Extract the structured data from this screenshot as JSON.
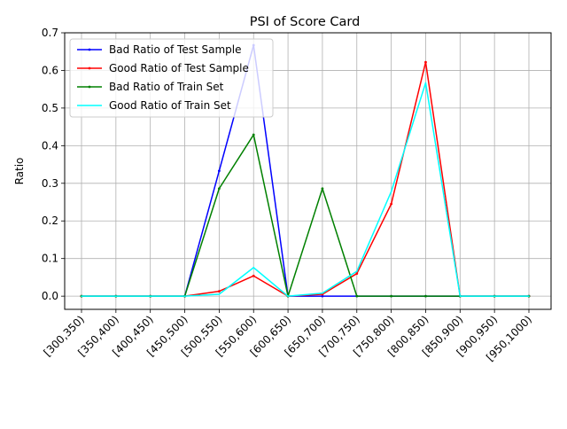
{
  "chart_data": {
    "type": "line",
    "title": "PSI of Score Card",
    "xlabel": "",
    "ylabel": "Ratio",
    "ylim": [
      -0.035,
      0.7
    ],
    "yticks": [
      0.0,
      0.1,
      0.2,
      0.3,
      0.4,
      0.5,
      0.6,
      0.7
    ],
    "ytick_labels": [
      "0.0",
      "0.1",
      "0.2",
      "0.3",
      "0.4",
      "0.5",
      "0.6",
      "0.7"
    ],
    "grid": true,
    "legend_position": "upper-left",
    "categories": [
      "[300,350)",
      "[350,400)",
      "[400,450)",
      "[450,500)",
      "[500,550)",
      "[550,600)",
      "[600,650)",
      "[650,700)",
      "[700,750)",
      "[750,800)",
      "[800,850)",
      "[850,900)",
      "[900,950)",
      "[950,1000)"
    ],
    "series": [
      {
        "name": "Bad Ratio of Test Sample",
        "color": "#0000ff",
        "markers": true,
        "values": [
          0,
          0,
          0,
          0,
          0.333,
          0.667,
          0,
          0,
          0,
          0,
          0,
          0,
          0,
          0
        ]
      },
      {
        "name": "Good Ratio of Test Sample",
        "color": "#ff0000",
        "markers": true,
        "values": [
          0,
          0,
          0,
          0,
          0.013,
          0.054,
          0,
          0.005,
          0.06,
          0.245,
          0.622,
          0,
          0,
          0
        ]
      },
      {
        "name": "Bad Ratio of Train Set",
        "color": "#008000",
        "markers": true,
        "values": [
          0,
          0,
          0,
          0,
          0.286,
          0.429,
          0,
          0.286,
          0,
          0,
          0,
          0,
          0,
          0
        ]
      },
      {
        "name": "Good Ratio of Train Set",
        "color": "#00ffff",
        "markers": false,
        "values": [
          0,
          0,
          0,
          0,
          0.005,
          0.076,
          0,
          0.008,
          0.066,
          0.278,
          0.567,
          0,
          0,
          0
        ]
      }
    ]
  }
}
